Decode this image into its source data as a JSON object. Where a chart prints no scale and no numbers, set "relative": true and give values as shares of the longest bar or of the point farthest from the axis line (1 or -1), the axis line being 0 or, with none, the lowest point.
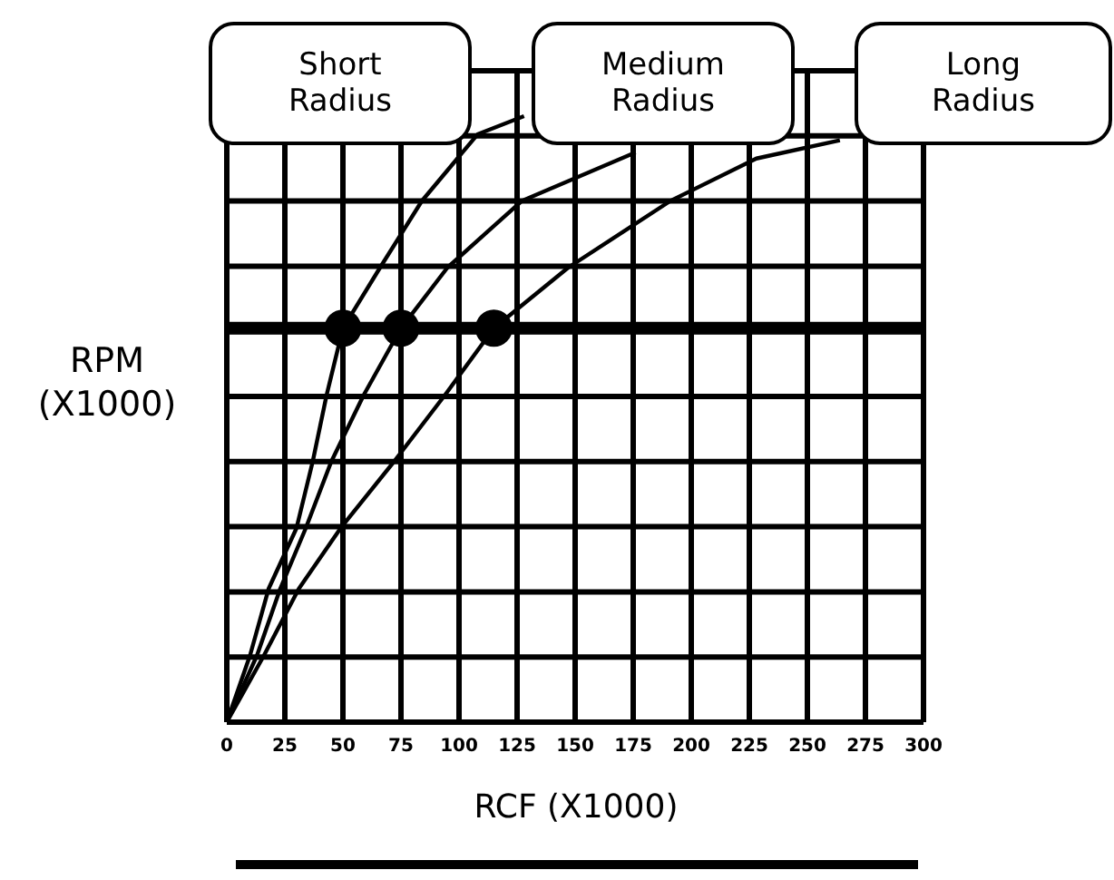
{
  "chart_data": {
    "type": "line",
    "xlabel": "RCF (X1000)",
    "ylabel": "RPM\n(X1000)",
    "relative": true,
    "xlim": [
      0,
      300
    ],
    "xticks": [
      0,
      25,
      50,
      75,
      100,
      125,
      150,
      175,
      200,
      225,
      250,
      275,
      300
    ],
    "grid": true,
    "legend": false,
    "series": [
      {
        "name": "Short Radius",
        "color": "#000000",
        "x": [
          0,
          10,
          18,
          30,
          37,
          43,
          50,
          66,
          84,
          108,
          128
        ],
        "values": [
          0,
          0.11,
          0.22,
          0.32,
          0.43,
          0.54,
          0.65,
          0.75,
          0.86,
          0.97,
          1
        ]
      },
      {
        "name": "Medium Radius",
        "color": "#000000",
        "x": [
          0,
          13,
          23,
          34,
          45,
          59,
          75,
          95,
          127,
          176
        ],
        "values": [
          0,
          0.11,
          0.22,
          0.32,
          0.43,
          0.54,
          0.65,
          0.75,
          0.86,
          0.94
        ]
      },
      {
        "name": "Long Radius",
        "color": "#000000",
        "x": [
          0,
          16,
          31,
          49,
          72,
          94,
          115,
          147,
          191,
          228,
          264
        ],
        "values": [
          0,
          0.11,
          0.22,
          0.32,
          0.43,
          0.54,
          0.65,
          0.75,
          0.86,
          0.93,
          0.96
        ]
      },
      {
        "type": "scatter",
        "marker": "circle",
        "color": "#000000",
        "x": [
          50,
          75,
          115
        ],
        "values": [
          0.65,
          0.65,
          0.65
        ]
      }
    ],
    "ref_lines": [
      {
        "axis": "y",
        "value": 0.65,
        "color": "#000000"
      }
    ]
  }
}
